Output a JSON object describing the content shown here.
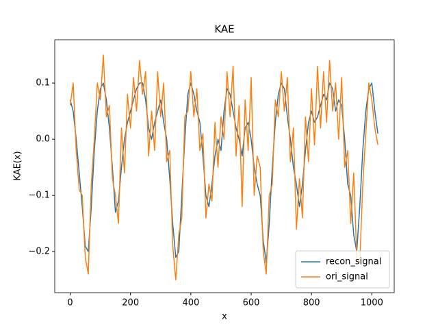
{
  "chart_data": {
    "type": "line",
    "title": "KAE",
    "xlabel": "x",
    "ylabel": "KAE(x)",
    "x": [
      0,
      10,
      20,
      30,
      40,
      50,
      60,
      70,
      80,
      90,
      100,
      110,
      120,
      130,
      140,
      150,
      160,
      170,
      180,
      190,
      200,
      210,
      220,
      230,
      240,
      250,
      260,
      270,
      280,
      290,
      300,
      310,
      320,
      330,
      340,
      350,
      360,
      370,
      380,
      390,
      400,
      410,
      420,
      430,
      440,
      450,
      460,
      470,
      480,
      490,
      500,
      510,
      520,
      530,
      540,
      550,
      560,
      570,
      580,
      590,
      600,
      610,
      620,
      630,
      640,
      650,
      660,
      670,
      680,
      690,
      700,
      710,
      720,
      730,
      740,
      750,
      760,
      770,
      780,
      790,
      800,
      810,
      820,
      830,
      840,
      850,
      860,
      870,
      880,
      890,
      900,
      910,
      920,
      930,
      940,
      950,
      960,
      970,
      980,
      990,
      1000,
      1010,
      1020
    ],
    "series": [
      {
        "name": "recon_signal",
        "color": "#1f77b4",
        "values": [
          0.07,
          0.05,
          0.0,
          -0.06,
          -0.12,
          -0.19,
          -0.2,
          -0.12,
          -0.02,
          0.05,
          0.09,
          0.1,
          0.07,
          0.02,
          -0.05,
          -0.13,
          -0.11,
          -0.05,
          0.0,
          0.03,
          0.05,
          0.07,
          0.09,
          0.1,
          0.1,
          0.07,
          0.02,
          0.0,
          0.03,
          0.05,
          0.07,
          0.03,
          0.0,
          -0.07,
          -0.15,
          -0.21,
          -0.2,
          -0.1,
          0.0,
          0.08,
          0.1,
          0.08,
          0.05,
          0.03,
          -0.03,
          -0.1,
          -0.12,
          -0.08,
          -0.03,
          0.0,
          -0.02,
          0.05,
          0.09,
          0.08,
          0.05,
          0.02,
          0.0,
          -0.03,
          0.02,
          0.03,
          0.0,
          -0.05,
          -0.08,
          -0.1,
          -0.18,
          -0.22,
          -0.15,
          -0.05,
          0.03,
          0.08,
          0.1,
          0.09,
          0.04,
          0.0,
          -0.05,
          -0.08,
          -0.12,
          -0.08,
          -0.02,
          0.03,
          0.05,
          0.03,
          0.04,
          0.06,
          0.08,
          0.07,
          0.1,
          0.09,
          0.05,
          0.07,
          0.06,
          0.0,
          -0.08,
          -0.1,
          -0.17,
          -0.2,
          -0.12,
          -0.02,
          0.05,
          0.09,
          0.1,
          0.05,
          0.01
        ]
      },
      {
        "name": "ori_signal",
        "color": "#ff7f0e",
        "values": [
          0.06,
          0.1,
          -0.02,
          -0.09,
          -0.1,
          -0.21,
          -0.24,
          -0.08,
          0.0,
          0.1,
          0.07,
          0.15,
          0.04,
          0.06,
          -0.07,
          -0.1,
          -0.15,
          0.02,
          -0.06,
          0.08,
          0.02,
          0.11,
          0.05,
          0.14,
          0.08,
          0.12,
          -0.03,
          0.05,
          -0.02,
          0.12,
          0.04,
          0.1,
          -0.04,
          -0.02,
          -0.19,
          -0.25,
          -0.17,
          -0.14,
          0.04,
          0.05,
          0.12,
          0.04,
          0.09,
          -0.02,
          0.01,
          -0.14,
          -0.08,
          -0.11,
          0.03,
          -0.05,
          0.04,
          0.0,
          0.12,
          0.04,
          0.13,
          -0.03,
          0.06,
          -0.12,
          0.07,
          -0.02,
          0.11,
          -0.1,
          -0.03,
          -0.05,
          -0.2,
          -0.24,
          -0.1,
          -0.08,
          0.07,
          0.04,
          0.12,
          0.05,
          0.11,
          -0.04,
          0.02,
          -0.16,
          -0.07,
          -0.14,
          0.04,
          -0.04,
          0.09,
          -0.01,
          0.13,
          0.02,
          0.12,
          0.03,
          0.14,
          0.05,
          0.1,
          0.0,
          0.11,
          -0.05,
          -0.02,
          -0.15,
          -0.06,
          -0.21,
          -0.22,
          -0.08,
          0.01,
          0.1,
          0.07,
          0.02,
          -0.01
        ]
      }
    ],
    "xlim": [
      -51.15,
      1074.15
    ],
    "xticks": [
      0,
      200,
      400,
      600,
      800,
      1000
    ],
    "ylim": [
      -0.273,
      0.177
    ],
    "yticks": [
      {
        "value": -0.2,
        "label": "−0.2"
      },
      {
        "value": -0.1,
        "label": "−0.1"
      },
      {
        "value": 0,
        "label": "0.0"
      },
      0.1
    ],
    "legend": "lower right",
    "grid": false
  }
}
